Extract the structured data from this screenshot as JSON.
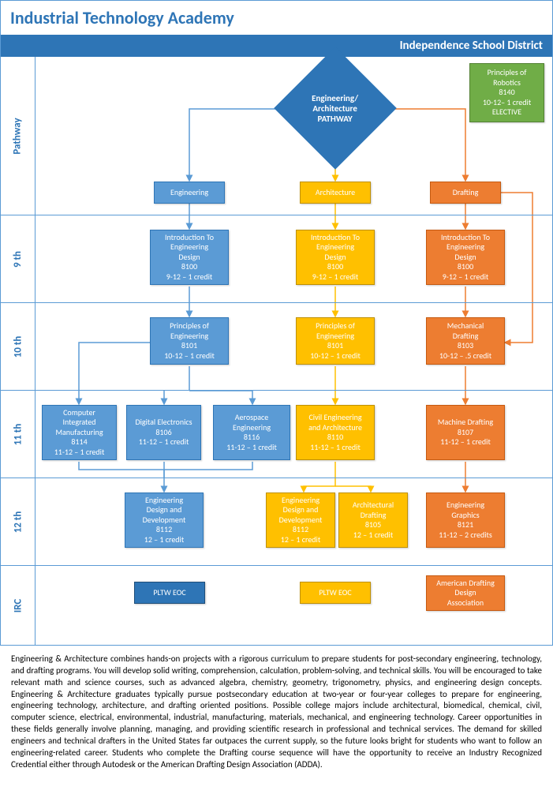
{
  "title": "Industrial Technology Academy",
  "subtitle": "Independence School District",
  "rows": {
    "pathway": "Pathway",
    "g9": "9 th",
    "g10": "10 th",
    "g11": "11 th",
    "g12": "12 th",
    "irc": "IRC"
  },
  "colors": {
    "blue": "#5b9bd5",
    "blue_border": "#2e75b6",
    "yellow": "#ffc000",
    "yellow_border": "#bf9000",
    "orange": "#ed7d31",
    "orange_border": "#c55a11",
    "green": "#70ad47",
    "green_border": "#548235",
    "header_blue": "#2e75b6",
    "text_blue": "#2e75b6"
  },
  "diamond": {
    "text": "Engineering/ Architecture PATHWAY"
  },
  "nodes": {
    "elective": {
      "lines": [
        "Principles of",
        "Robotics",
        "8140",
        "10-12– 1 credit",
        "ELECTIVE"
      ]
    },
    "eng_track": {
      "label": "Engineering"
    },
    "arch_track": {
      "label": "Architecture"
    },
    "draft_track": {
      "label": "Drafting"
    },
    "g9_eng": {
      "lines": [
        "Introduction To",
        "Engineering",
        "Design",
        "8100",
        "9-12 – 1 credit"
      ]
    },
    "g9_arch": {
      "lines": [
        "Introduction To",
        "Engineering",
        "Design",
        "8100",
        "9-12 – 1 credit"
      ]
    },
    "g9_draft": {
      "lines": [
        "Introduction To",
        "Engineering",
        "Design",
        "8100",
        "9-12 – 1 credit"
      ]
    },
    "g10_eng": {
      "lines": [
        "Principles of",
        "Engineering",
        "8101",
        "10-12 – 1 credit"
      ]
    },
    "g10_arch": {
      "lines": [
        "Principles of",
        "Engineering",
        "8101",
        "10-12 – 1 credit"
      ]
    },
    "g10_draft": {
      "lines": [
        "Mechanical",
        "Drafting",
        "8103",
        "10-12 – .5 credit"
      ]
    },
    "g11_cim": {
      "lines": [
        "Computer",
        "Integrated",
        "Manufacturing",
        "8114",
        "11-12 – 1 credit"
      ]
    },
    "g11_de": {
      "lines": [
        "Digital Electronics",
        "8106",
        "11-12 – 1 credit"
      ]
    },
    "g11_ae": {
      "lines": [
        "Aerospace",
        "Engineering",
        "8116",
        "11-12 – 1 credit"
      ]
    },
    "g11_civil": {
      "lines": [
        "Civil Engineering",
        "and Architecture",
        "8110",
        "11-12 – 1 credit"
      ]
    },
    "g11_machine": {
      "lines": [
        "Machine Drafting",
        "8107",
        "11-12 – 1 credit"
      ]
    },
    "g12_edd_b": {
      "lines": [
        "Engineering",
        "Design and",
        "Development",
        "8112",
        "12 – 1 credit"
      ]
    },
    "g12_edd_y": {
      "lines": [
        "Engineering",
        "Design and",
        "Development",
        "8112",
        "12 – 1 credit"
      ]
    },
    "g12_archdraft": {
      "lines": [
        "Architectural",
        "Drafting",
        "8105",
        "12 – 1 credit"
      ]
    },
    "g12_eg": {
      "lines": [
        "Engineering",
        "Graphics",
        "8121",
        "11-12 – 2 credits"
      ]
    },
    "irc_pltw1": {
      "label": "PLTW EOC"
    },
    "irc_pltw2": {
      "label": "PLTW EOC"
    },
    "irc_adda": {
      "lines": [
        "American Drafting",
        "Design",
        "Association"
      ]
    }
  },
  "description": "Engineering & Architecture combines hands-on projects with a rigorous curriculum to prepare students for post-secondary engineering, technology, and drafting programs. You will develop solid writing, comprehension, calculation, problem-solving, and technical skills. You will be encouraged to take relevant math and science courses, such as advanced algebra, chemistry, geometry, trigonometry, physics, and engineering design concepts. Engineering & Architecture graduates typically pursue postsecondary education at two-year or four-year colleges to prepare for engineering, engineering technology, architecture, and drafting oriented positions. Possible college majors include architectural, biomedical, chemical, civil, computer science, electrical, environmental, industrial, manufacturing, materials, mechanical, and engineering technology. Career opportunities in these fields generally involve planning, managing, and providing scientific research in professional and technical services. The demand for skilled engineers and technical drafters in the United States far outpaces the current supply, so the future looks bright for students who want to follow an engineering-related career. Students who complete the Drafting course sequence will have the opportunity to receive an Industry Recognized Credential either through Autodesk or the American Drafting Design Association (ADDA)."
}
